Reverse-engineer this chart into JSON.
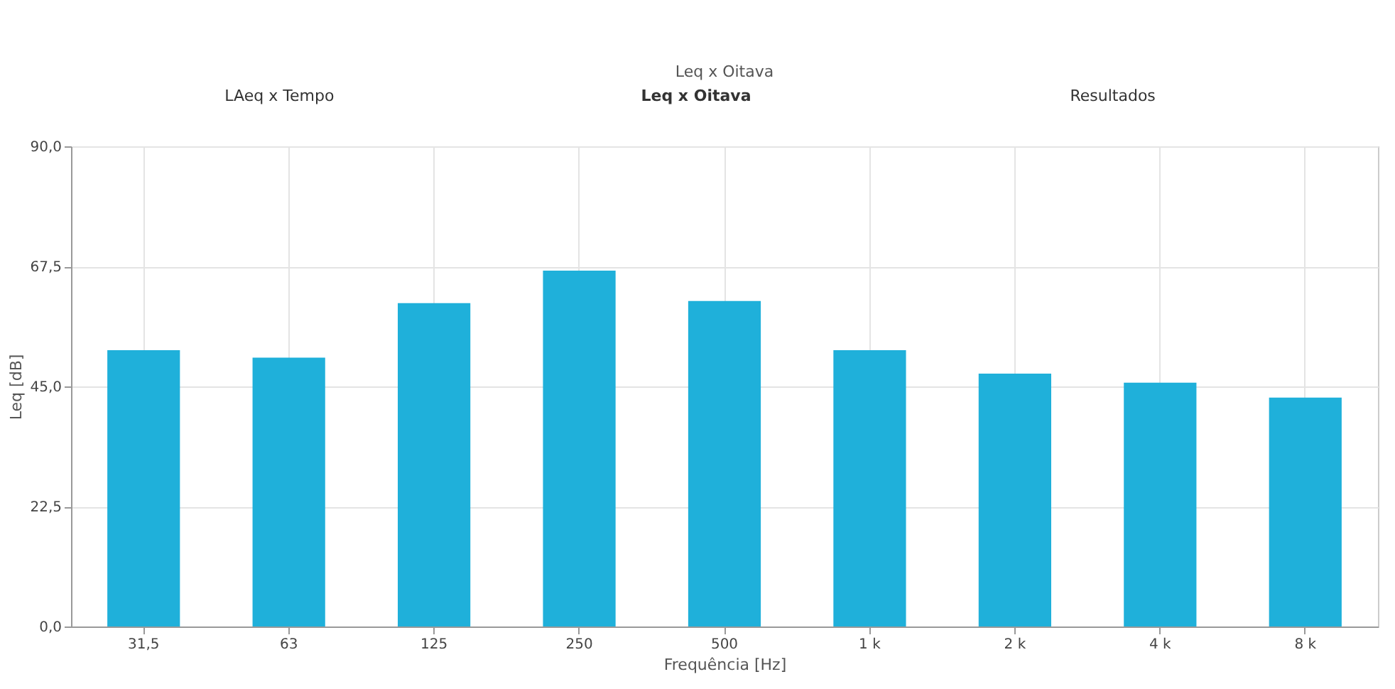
{
  "chart_data": {
    "type": "bar",
    "title": "Leq x Oitava",
    "xlabel": "Frequência [Hz]",
    "ylabel": "Leq [dB]",
    "categories": [
      "31,5",
      "63",
      "125",
      "250",
      "500",
      "1 k",
      "2 k",
      "4 k",
      "8 k"
    ],
    "values": [
      51.8,
      50.4,
      60.6,
      66.7,
      61.0,
      51.8,
      47.4,
      45.7,
      42.9
    ],
    "color": "#1fb0da",
    "ylim": [
      0,
      90
    ],
    "yticks": [
      {
        "value": 0,
        "label": "0,0"
      },
      {
        "value": 22.5,
        "label": "22,5"
      },
      {
        "value": 45,
        "label": "45,0"
      },
      {
        "value": 67.5,
        "label": "67,5"
      },
      {
        "value": 90,
        "label": "90,0"
      }
    ],
    "grid": true,
    "annotations": [
      "LAeq x Tempo",
      "Leq x Oitava",
      "Resultados"
    ]
  }
}
